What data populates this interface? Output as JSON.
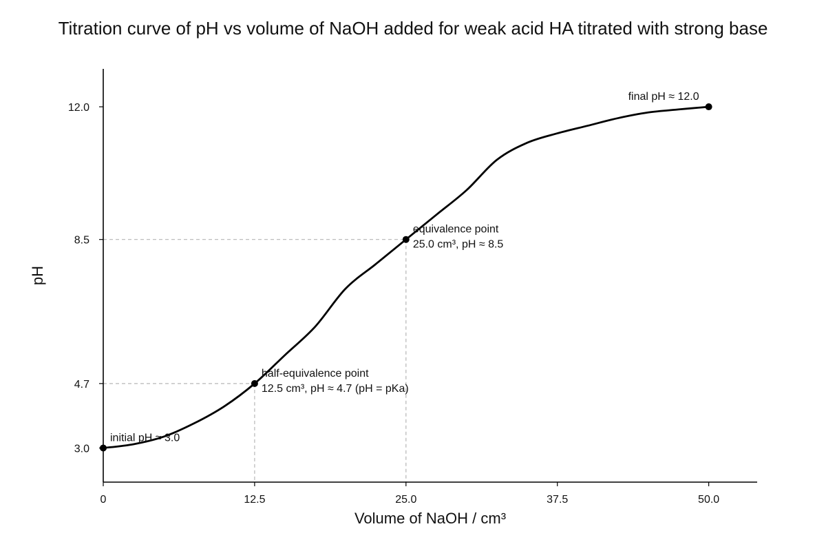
{
  "chart_data": {
    "type": "line",
    "title": "Titration curve of pH vs volume of NaOH added for weak acid HA titrated with strong base",
    "xlabel": "Volume of NaOH / cm³",
    "ylabel": "pH",
    "xlim": [
      0,
      54
    ],
    "ylim": [
      2.1,
      13.0
    ],
    "x_ticks": [
      0,
      12.5,
      25.0,
      37.5,
      50.0
    ],
    "x_tick_labels": [
      "0",
      "12.5",
      "25.0",
      "37.5",
      "50.0"
    ],
    "y_ticks": [
      3.0,
      4.7,
      8.5,
      12.0
    ],
    "y_tick_labels": [
      "3.0",
      "4.7",
      "8.5",
      "12.0"
    ],
    "grid": false,
    "series": [
      {
        "x": [
          0,
          2.5,
          5,
          7.5,
          10,
          12.5,
          15,
          17.5,
          20,
          22.5,
          25,
          27.5,
          30,
          32.5,
          35,
          37.5,
          40,
          42.5,
          45,
          47.5,
          50
        ],
        "y": [
          3.0,
          3.1,
          3.3,
          3.65,
          4.1,
          4.7,
          5.45,
          6.2,
          7.2,
          7.85,
          8.5,
          9.15,
          9.8,
          10.6,
          11.05,
          11.3,
          11.5,
          11.7,
          11.85,
          11.93,
          12.0
        ]
      }
    ],
    "points": [
      {
        "x": 0,
        "y": 3.0,
        "lines": [
          "initial pH ≈ 3.0"
        ]
      },
      {
        "x": 12.5,
        "y": 4.7,
        "lines": [
          "half-equivalence point",
          "12.5 cm³, pH ≈ 4.7 (pH = pKa)"
        ]
      },
      {
        "x": 25.0,
        "y": 8.5,
        "lines": [
          "equivalence point",
          "25.0 cm³, pH ≈ 8.5"
        ]
      },
      {
        "x": 50.0,
        "y": 12.0,
        "lines": [
          "final pH ≈ 12.0"
        ]
      }
    ],
    "guides": [
      {
        "x": 12.5,
        "y": 4.7
      },
      {
        "x": 25.0,
        "y": 8.5
      }
    ]
  }
}
